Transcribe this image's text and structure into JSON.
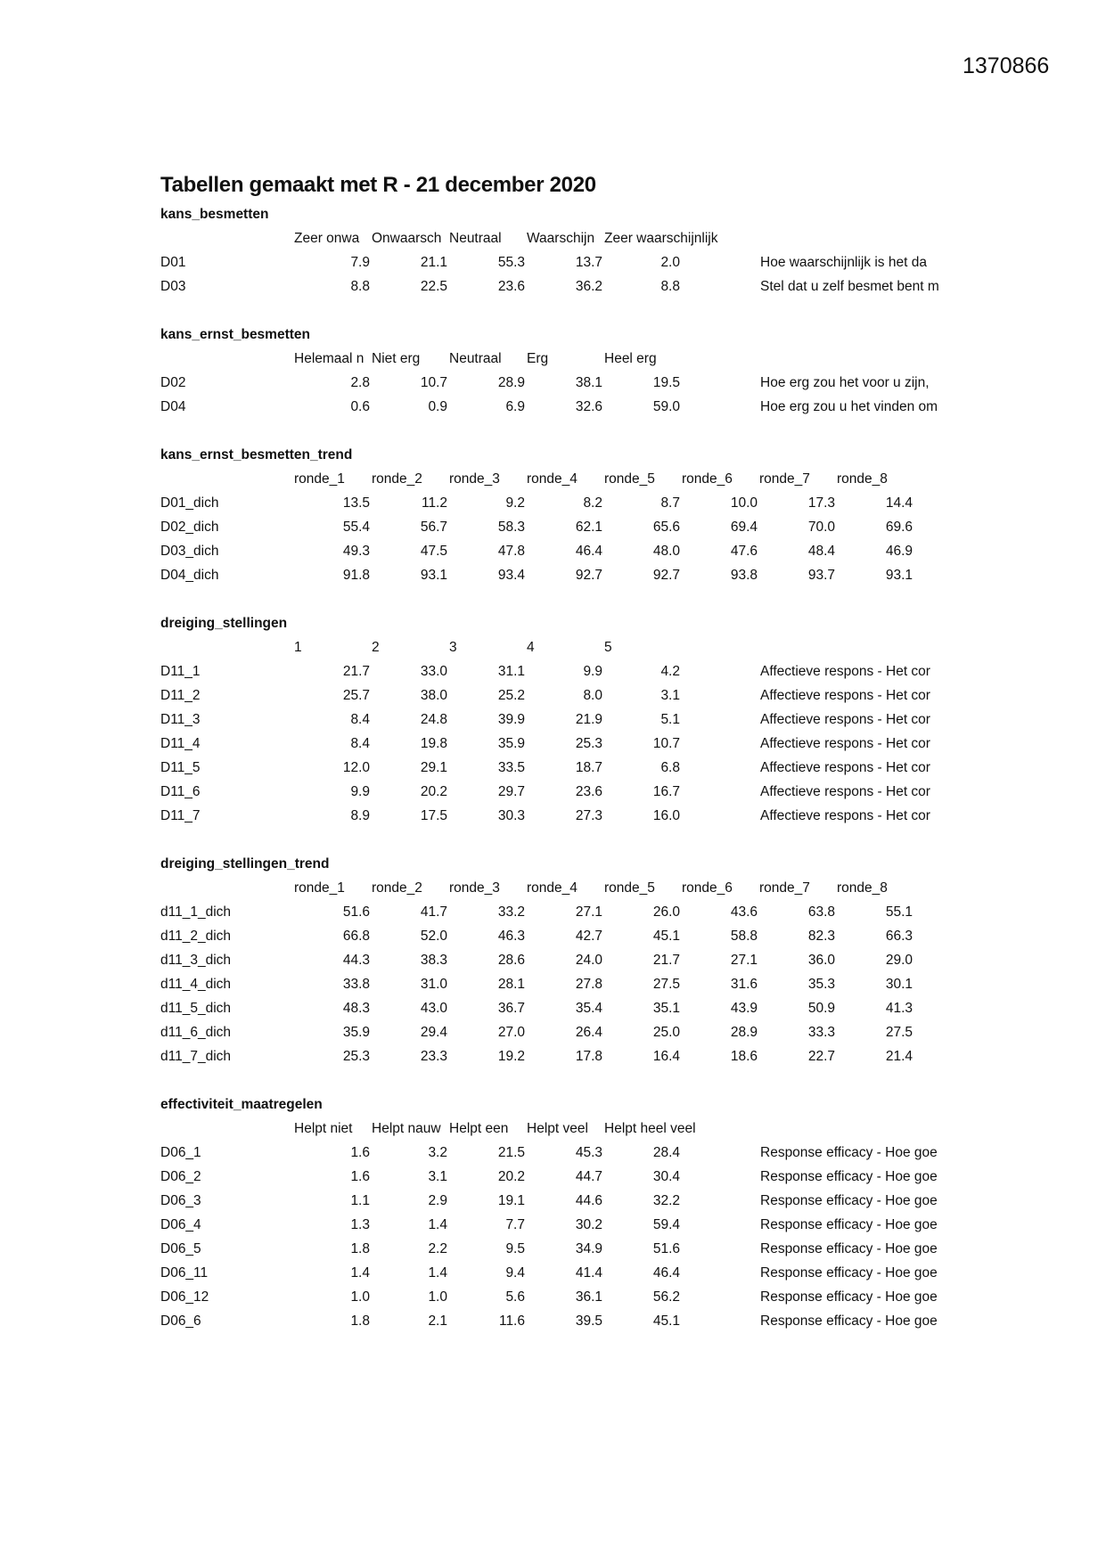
{
  "document_id": "1370866",
  "title": "Tabellen gemaakt met R - 21 december 2020",
  "sections": [
    {
      "name": "kans_besmetten",
      "columns": [
        "Zeer onwa",
        "Onwaarsch",
        "Neutraal",
        "Waarschijn",
        "Zeer waarschijnlijk"
      ],
      "rows": [
        {
          "label": "D01",
          "values": [
            "7.9",
            "21.1",
            "55.3",
            "13.7",
            "2.0"
          ],
          "description": "Hoe waarschijnlijk is het da"
        },
        {
          "label": "D03",
          "values": [
            "8.8",
            "22.5",
            "23.6",
            "36.2",
            "8.8"
          ],
          "description": "Stel dat u zelf besmet bent m"
        }
      ]
    },
    {
      "name": "kans_ernst_besmetten",
      "columns": [
        "Helemaal n",
        "Niet erg",
        "Neutraal",
        "Erg",
        "Heel erg"
      ],
      "rows": [
        {
          "label": "D02",
          "values": [
            "2.8",
            "10.7",
            "28.9",
            "38.1",
            "19.5"
          ],
          "description": "Hoe erg zou het voor u zijn,"
        },
        {
          "label": "D04",
          "values": [
            "0.6",
            "0.9",
            "6.9",
            "32.6",
            "59.0"
          ],
          "description": "Hoe erg zou u het vinden om"
        }
      ]
    },
    {
      "name": "kans_ernst_besmetten_trend",
      "columns": [
        "ronde_1",
        "ronde_2",
        "ronde_3",
        "ronde_4",
        "ronde_5",
        "ronde_6",
        "ronde_7",
        "ronde_8"
      ],
      "rows": [
        {
          "label": "D01_dich",
          "values": [
            "13.5",
            "11.2",
            "9.2",
            "8.2",
            "8.7",
            "10.0",
            "17.3",
            "14.4"
          ]
        },
        {
          "label": "D02_dich",
          "values": [
            "55.4",
            "56.7",
            "58.3",
            "62.1",
            "65.6",
            "69.4",
            "70.0",
            "69.6"
          ]
        },
        {
          "label": "D03_dich",
          "values": [
            "49.3",
            "47.5",
            "47.8",
            "46.4",
            "48.0",
            "47.6",
            "48.4",
            "46.9"
          ]
        },
        {
          "label": "D04_dich",
          "values": [
            "91.8",
            "93.1",
            "93.4",
            "92.7",
            "92.7",
            "93.8",
            "93.7",
            "93.1"
          ]
        }
      ]
    },
    {
      "name": "dreiging_stellingen",
      "columns": [
        "1",
        "2",
        "3",
        "4",
        "5"
      ],
      "rows": [
        {
          "label": "D11_1",
          "values": [
            "21.7",
            "33.0",
            "31.1",
            "9.9",
            "4.2"
          ],
          "description": "Affectieve respons - Het cor"
        },
        {
          "label": "D11_2",
          "values": [
            "25.7",
            "38.0",
            "25.2",
            "8.0",
            "3.1"
          ],
          "description": "Affectieve respons - Het cor"
        },
        {
          "label": "D11_3",
          "values": [
            "8.4",
            "24.8",
            "39.9",
            "21.9",
            "5.1"
          ],
          "description": "Affectieve respons - Het cor"
        },
        {
          "label": "D11_4",
          "values": [
            "8.4",
            "19.8",
            "35.9",
            "25.3",
            "10.7"
          ],
          "description": "Affectieve respons - Het cor"
        },
        {
          "label": "D11_5",
          "values": [
            "12.0",
            "29.1",
            "33.5",
            "18.7",
            "6.8"
          ],
          "description": "Affectieve respons - Het cor"
        },
        {
          "label": "D11_6",
          "values": [
            "9.9",
            "20.2",
            "29.7",
            "23.6",
            "16.7"
          ],
          "description": "Affectieve respons - Het cor"
        },
        {
          "label": "D11_7",
          "values": [
            "8.9",
            "17.5",
            "30.3",
            "27.3",
            "16.0"
          ],
          "description": "Affectieve respons - Het cor"
        }
      ]
    },
    {
      "name": "dreiging_stellingen_trend",
      "columns": [
        "ronde_1",
        "ronde_2",
        "ronde_3",
        "ronde_4",
        "ronde_5",
        "ronde_6",
        "ronde_7",
        "ronde_8"
      ],
      "rows": [
        {
          "label": "d11_1_dich",
          "values": [
            "51.6",
            "41.7",
            "33.2",
            "27.1",
            "26.0",
            "43.6",
            "63.8",
            "55.1"
          ]
        },
        {
          "label": "d11_2_dich",
          "values": [
            "66.8",
            "52.0",
            "46.3",
            "42.7",
            "45.1",
            "58.8",
            "82.3",
            "66.3"
          ]
        },
        {
          "label": "d11_3_dich",
          "values": [
            "44.3",
            "38.3",
            "28.6",
            "24.0",
            "21.7",
            "27.1",
            "36.0",
            "29.0"
          ]
        },
        {
          "label": "d11_4_dich",
          "values": [
            "33.8",
            "31.0",
            "28.1",
            "27.8",
            "27.5",
            "31.6",
            "35.3",
            "30.1"
          ]
        },
        {
          "label": "d11_5_dich",
          "values": [
            "48.3",
            "43.0",
            "36.7",
            "35.4",
            "35.1",
            "43.9",
            "50.9",
            "41.3"
          ]
        },
        {
          "label": "d11_6_dich",
          "values": [
            "35.9",
            "29.4",
            "27.0",
            "26.4",
            "25.0",
            "28.9",
            "33.3",
            "27.5"
          ]
        },
        {
          "label": "d11_7_dich",
          "values": [
            "25.3",
            "23.3",
            "19.2",
            "17.8",
            "16.4",
            "18.6",
            "22.7",
            "21.4"
          ]
        }
      ]
    },
    {
      "name": "effectiviteit_maatregelen",
      "columns": [
        "Helpt niet",
        "Helpt nauw",
        "Helpt een",
        "Helpt veel",
        "Helpt heel veel"
      ],
      "rows": [
        {
          "label": "D06_1",
          "values": [
            "1.6",
            "3.2",
            "21.5",
            "45.3",
            "28.4"
          ],
          "description": "Response efficacy - Hoe goe"
        },
        {
          "label": "D06_2",
          "values": [
            "1.6",
            "3.1",
            "20.2",
            "44.7",
            "30.4"
          ],
          "description": "Response efficacy - Hoe goe"
        },
        {
          "label": "D06_3",
          "values": [
            "1.1",
            "2.9",
            "19.1",
            "44.6",
            "32.2"
          ],
          "description": "Response efficacy - Hoe goe"
        },
        {
          "label": "D06_4",
          "values": [
            "1.3",
            "1.4",
            "7.7",
            "30.2",
            "59.4"
          ],
          "description": "Response efficacy - Hoe goe"
        },
        {
          "label": "D06_5",
          "values": [
            "1.8",
            "2.2",
            "9.5",
            "34.9",
            "51.6"
          ],
          "description": "Response efficacy - Hoe goe"
        },
        {
          "label": "D06_11",
          "values": [
            "1.4",
            "1.4",
            "9.4",
            "41.4",
            "46.4"
          ],
          "description": "Response efficacy - Hoe goe"
        },
        {
          "label": "D06_12",
          "values": [
            "1.0",
            "1.0",
            "5.6",
            "36.1",
            "56.2"
          ],
          "description": "Response efficacy - Hoe goe"
        },
        {
          "label": "D06_6",
          "values": [
            "1.8",
            "2.1",
            "11.6",
            "39.5",
            "45.1"
          ],
          "description": "Response efficacy - Hoe goe"
        }
      ]
    }
  ]
}
